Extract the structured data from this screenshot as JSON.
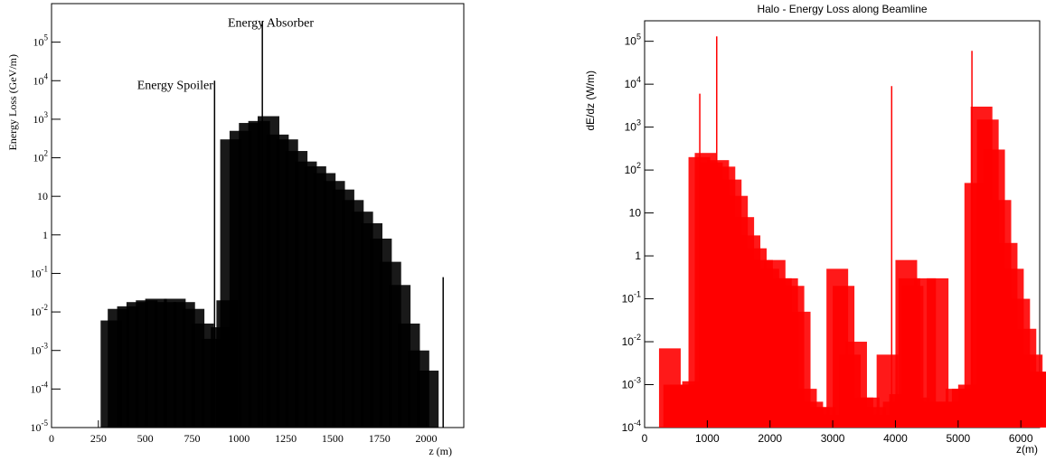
{
  "chart_data": [
    {
      "type": "histogram",
      "title": "",
      "xlabel": "z (m)",
      "ylabel": "Energy Loss (GeV/m)",
      "yscale": "log",
      "xlim": [
        0,
        2200
      ],
      "ylim": [
        1e-05,
        1000000.0
      ],
      "grid": false,
      "legend": "none",
      "series_color": "#000000",
      "x_ticks": [
        0,
        250,
        500,
        750,
        1000,
        1250,
        1500,
        1750,
        2000
      ],
      "x_tick_labels": [
        "0",
        "250",
        "500",
        "750",
        "1000",
        "1250",
        "1500",
        "1750",
        "2000"
      ],
      "y_ticks": [
        {
          "value": 1e-05,
          "mantissa": "10",
          "exp": "-5"
        },
        {
          "value": 0.0001,
          "mantissa": "10",
          "exp": "-4"
        },
        {
          "value": 0.001,
          "mantissa": "10",
          "exp": "-3"
        },
        {
          "value": 0.01,
          "mantissa": "10",
          "exp": "-2"
        },
        {
          "value": 0.1,
          "mantissa": "10",
          "exp": "-1"
        },
        {
          "value": 1,
          "mantissa": "1",
          "exp": ""
        },
        {
          "value": 10,
          "mantissa": "10",
          "exp": ""
        },
        {
          "value": 100,
          "mantissa": "10",
          "exp": "2"
        },
        {
          "value": 1000,
          "mantissa": "10",
          "exp": "3"
        },
        {
          "value": 10000,
          "mantissa": "10",
          "exp": "4"
        },
        {
          "value": 100000,
          "mantissa": "10",
          "exp": "5"
        }
      ],
      "annotations": [
        {
          "text": "Energy Spoiler",
          "x": 660,
          "y": 6000
        },
        {
          "text": "Energy Absorber",
          "x": 1170,
          "y": 250000
        }
      ],
      "spikes": [
        {
          "x": 870,
          "y": 10000
        },
        {
          "x": 1125,
          "y": 350000
        },
        {
          "x": 2090,
          "y": 0.08
        }
      ],
      "bars": [
        {
          "x": 0,
          "y": 1e-05
        },
        {
          "x": 100,
          "y": 1e-05
        },
        {
          "x": 200,
          "y": 1e-05
        },
        {
          "x": 262,
          "y": 0.006
        },
        {
          "x": 300,
          "y": 0.012
        },
        {
          "x": 350,
          "y": 0.014
        },
        {
          "x": 400,
          "y": 0.018
        },
        {
          "x": 450,
          "y": 0.02
        },
        {
          "x": 500,
          "y": 0.022
        },
        {
          "x": 550,
          "y": 0.018
        },
        {
          "x": 600,
          "y": 0.022
        },
        {
          "x": 650,
          "y": 0.018
        },
        {
          "x": 700,
          "y": 0.012
        },
        {
          "x": 750,
          "y": 0.005
        },
        {
          "x": 800,
          "y": 0.002
        },
        {
          "x": 850,
          "y": 0.004
        },
        {
          "x": 880,
          "y": 0.02
        },
        {
          "x": 900,
          "y": 300
        },
        {
          "x": 950,
          "y": 500
        },
        {
          "x": 1000,
          "y": 800
        },
        {
          "x": 1050,
          "y": 900
        },
        {
          "x": 1100,
          "y": 1200
        },
        {
          "x": 1150,
          "y": 400
        },
        {
          "x": 1200,
          "y": 300
        },
        {
          "x": 1250,
          "y": 150
        },
        {
          "x": 1300,
          "y": 80
        },
        {
          "x": 1350,
          "y": 60
        },
        {
          "x": 1400,
          "y": 40
        },
        {
          "x": 1450,
          "y": 25
        },
        {
          "x": 1500,
          "y": 15
        },
        {
          "x": 1550,
          "y": 8
        },
        {
          "x": 1600,
          "y": 4
        },
        {
          "x": 1650,
          "y": 2
        },
        {
          "x": 1700,
          "y": 0.8
        },
        {
          "x": 1750,
          "y": 0.2
        },
        {
          "x": 1800,
          "y": 0.05
        },
        {
          "x": 1850,
          "y": 0.005
        },
        {
          "x": 1900,
          "y": 0.001
        },
        {
          "x": 1950,
          "y": 0.0003
        },
        {
          "x": 2000,
          "y": 1e-05
        },
        {
          "x": 2100,
          "y": 1e-05
        }
      ]
    },
    {
      "type": "histogram",
      "title": "Halo - Energy Loss along Beamline",
      "xlabel": "z(m)",
      "ylabel": "dE/dz (W/m)",
      "yscale": "log",
      "xlim": [
        0,
        6300
      ],
      "ylim": [
        0.0001,
        300000.0
      ],
      "grid": false,
      "legend": "none",
      "series_color": "#ff0000",
      "x_ticks": [
        0,
        1000,
        2000,
        3000,
        4000,
        5000,
        6000
      ],
      "x_tick_labels": [
        "0",
        "1000",
        "2000",
        "3000",
        "4000",
        "5000",
        "6000"
      ],
      "y_ticks": [
        {
          "value": 0.0001,
          "mantissa": "10",
          "exp": "-4"
        },
        {
          "value": 0.001,
          "mantissa": "10",
          "exp": "-3"
        },
        {
          "value": 0.01,
          "mantissa": "10",
          "exp": "-2"
        },
        {
          "value": 0.1,
          "mantissa": "10",
          "exp": "-1"
        },
        {
          "value": 1,
          "mantissa": "1",
          "exp": ""
        },
        {
          "value": 10,
          "mantissa": "10",
          "exp": ""
        },
        {
          "value": 100,
          "mantissa": "10",
          "exp": "2"
        },
        {
          "value": 1000,
          "mantissa": "10",
          "exp": "3"
        },
        {
          "value": 10000,
          "mantissa": "10",
          "exp": "4"
        },
        {
          "value": 100000,
          "mantissa": "10",
          "exp": "5"
        }
      ],
      "annotations": [],
      "spikes": [
        {
          "x": 880,
          "y": 6000
        },
        {
          "x": 1150,
          "y": 130000
        },
        {
          "x": 3940,
          "y": 9000
        },
        {
          "x": 5220,
          "y": 60000
        }
      ],
      "bars": [
        {
          "x": 230,
          "y": 0.007
        },
        {
          "x": 300,
          "y": 0.001
        },
        {
          "x": 400,
          "y": 0.001
        },
        {
          "x": 500,
          "y": 0.001
        },
        {
          "x": 600,
          "y": 0.0012
        },
        {
          "x": 700,
          "y": 200
        },
        {
          "x": 800,
          "y": 250
        },
        {
          "x": 900,
          "y": 150
        },
        {
          "x": 1000,
          "y": 170
        },
        {
          "x": 1100,
          "y": 120
        },
        {
          "x": 1200,
          "y": 60
        },
        {
          "x": 1300,
          "y": 25
        },
        {
          "x": 1400,
          "y": 8
        },
        {
          "x": 1500,
          "y": 3
        },
        {
          "x": 1600,
          "y": 1.5
        },
        {
          "x": 1700,
          "y": 0.8
        },
        {
          "x": 1800,
          "y": 0.5
        },
        {
          "x": 1900,
          "y": 0.8
        },
        {
          "x": 2000,
          "y": 0.3
        },
        {
          "x": 2100,
          "y": 0.3
        },
        {
          "x": 2200,
          "y": 0.2
        },
        {
          "x": 2300,
          "y": 0.05
        },
        {
          "x": 2400,
          "y": 0.0008
        },
        {
          "x": 2500,
          "y": 0.0004
        },
        {
          "x": 2600,
          "y": 0.0003
        },
        {
          "x": 2700,
          "y": 0.0003
        },
        {
          "x": 2800,
          "y": 0.0002
        },
        {
          "x": 2900,
          "y": 0.5
        },
        {
          "x": 3000,
          "y": 0.2
        },
        {
          "x": 3100,
          "y": 0.005
        },
        {
          "x": 3200,
          "y": 0.01
        },
        {
          "x": 3300,
          "y": 0.0005
        },
        {
          "x": 3400,
          "y": 0.0005
        },
        {
          "x": 3500,
          "y": 0.0003
        },
        {
          "x": 3600,
          "y": 0.0002
        },
        {
          "x": 3700,
          "y": 0.005
        },
        {
          "x": 3800,
          "y": 0.0004
        },
        {
          "x": 3900,
          "y": 0.0006
        },
        {
          "x": 4000,
          "y": 0.8
        },
        {
          "x": 4050,
          "y": 0.3
        },
        {
          "x": 4100,
          "y": 0.2
        },
        {
          "x": 4200,
          "y": 0.0005
        },
        {
          "x": 4300,
          "y": 0.3
        },
        {
          "x": 4400,
          "y": 0.0004
        },
        {
          "x": 4500,
          "y": 0.3
        },
        {
          "x": 4600,
          "y": 0.0004
        },
        {
          "x": 4700,
          "y": 0.0004
        },
        {
          "x": 4800,
          "y": 0.0008
        },
        {
          "x": 4900,
          "y": 0.0008
        },
        {
          "x": 5000,
          "y": 0.001
        },
        {
          "x": 5100,
          "y": 50
        },
        {
          "x": 5200,
          "y": 3000
        },
        {
          "x": 5300,
          "y": 1500
        },
        {
          "x": 5400,
          "y": 300
        },
        {
          "x": 5500,
          "y": 20
        },
        {
          "x": 5600,
          "y": 2
        },
        {
          "x": 5700,
          "y": 0.5
        },
        {
          "x": 5800,
          "y": 0.1
        },
        {
          "x": 5900,
          "y": 0.02
        },
        {
          "x": 6000,
          "y": 0.005
        },
        {
          "x": 6100,
          "y": 0.002
        },
        {
          "x": 6200,
          "y": 0.002
        }
      ]
    }
  ]
}
